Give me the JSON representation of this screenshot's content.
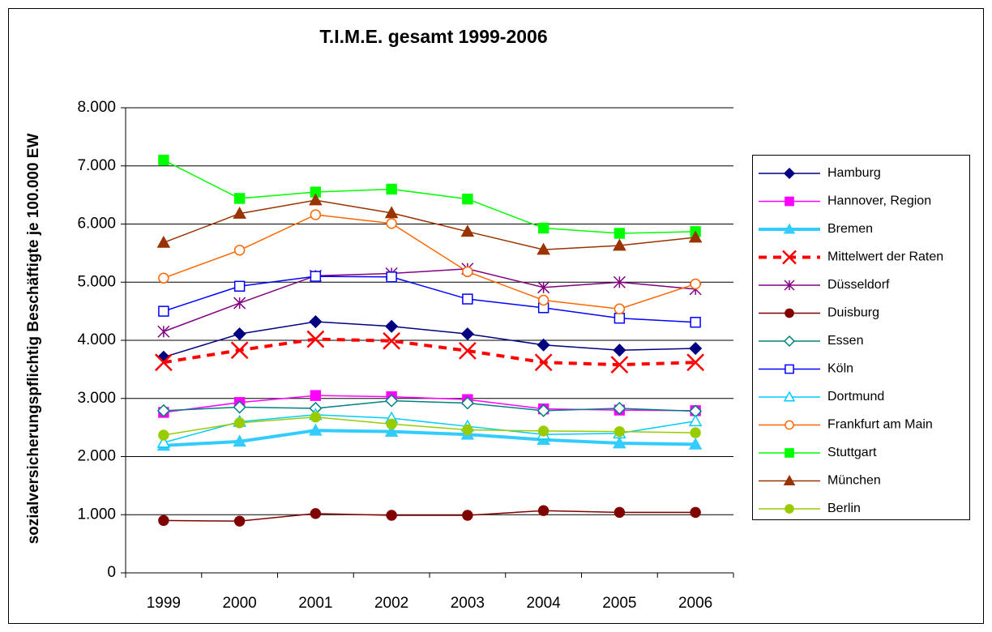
{
  "chart_data": {
    "type": "line",
    "title": "T.I.M.E. gesamt 1999-2006",
    "y_label": "sozialversicherungspflichtig Beschäftigte je 100.000 EW",
    "categories": [
      "1999",
      "2000",
      "2001",
      "2002",
      "2003",
      "2004",
      "2005",
      "2006"
    ],
    "ylim": [
      0,
      8000
    ],
    "yticks": [
      0,
      {
        "value": 1000,
        "label": "1.000"
      },
      {
        "value": 2000,
        "label": "2.000"
      },
      {
        "value": 3000,
        "label": "3.000"
      },
      {
        "value": 4000,
        "label": "4.000"
      },
      {
        "value": 5000,
        "label": "5.000"
      },
      {
        "value": 6000,
        "label": "6.000"
      },
      {
        "value": 7000,
        "label": "7.000"
      },
      {
        "value": 8000,
        "label": "8.000"
      }
    ],
    "grid": true,
    "legend": "right",
    "series": [
      {
        "name": "Hamburg",
        "color": "#000080",
        "marker": "diamond",
        "filled": true,
        "values": [
          3710,
          4110,
          4320,
          4240,
          4110,
          3920,
          3830,
          3860
        ]
      },
      {
        "name": "Hannover, Region",
        "color": "#ff00ff",
        "marker": "square",
        "filled": true,
        "values": [
          2760,
          2930,
          3050,
          3030,
          2980,
          2820,
          2800,
          2790
        ]
      },
      {
        "name": "Bremen",
        "color": "#33ccff",
        "marker": "triangle",
        "filled": true,
        "thick": true,
        "values": [
          2190,
          2260,
          2450,
          2430,
          2380,
          2290,
          2230,
          2210
        ]
      },
      {
        "name": "Mittelwert der Raten",
        "color": "#ff0000",
        "marker": "x",
        "dashed": true,
        "values": [
          3620,
          3830,
          4020,
          3990,
          3820,
          3620,
          3580,
          3620
        ]
      },
      {
        "name": "Düsseldorf",
        "color": "#800080",
        "marker": "star",
        "values": [
          4150,
          4640,
          5110,
          5150,
          5230,
          4910,
          5000,
          4880
        ]
      },
      {
        "name": "Duisburg",
        "color": "#800000",
        "marker": "circle",
        "filled": true,
        "values": [
          900,
          890,
          1020,
          990,
          990,
          1070,
          1040,
          1040
        ]
      },
      {
        "name": "Essen",
        "color": "#008080",
        "marker": "diamond",
        "filled": false,
        "values": [
          2790,
          2850,
          2830,
          2960,
          2920,
          2790,
          2830,
          2780
        ]
      },
      {
        "name": "Köln",
        "color": "#0000ff",
        "marker": "square",
        "filled": false,
        "values": [
          4500,
          4930,
          5100,
          5090,
          4710,
          4560,
          4380,
          4310
        ]
      },
      {
        "name": "Dortmund",
        "color": "#00ccff",
        "marker": "triangle",
        "filled": false,
        "values": [
          2240,
          2600,
          2720,
          2660,
          2520,
          2380,
          2400,
          2610
        ]
      },
      {
        "name": "Frankfurt am Main",
        "color": "#ff6600",
        "marker": "circle",
        "filled": false,
        "values": [
          5070,
          5550,
          6160,
          6010,
          5180,
          4690,
          4540,
          4970
        ]
      },
      {
        "name": "Stuttgart",
        "color": "#00ff00",
        "marker": "square",
        "filled": true,
        "values": [
          7100,
          6440,
          6550,
          6600,
          6430,
          5930,
          5840,
          5870
        ]
      },
      {
        "name": "München",
        "color": "#993300",
        "marker": "triangle",
        "filled": true,
        "values": [
          5680,
          6180,
          6410,
          6190,
          5870,
          5560,
          5630,
          5770
        ]
      },
      {
        "name": "Berlin",
        "color": "#99cc00",
        "marker": "circle",
        "filled": true,
        "values": [
          2370,
          2580,
          2680,
          2560,
          2460,
          2440,
          2430,
          2410
        ]
      }
    ]
  }
}
